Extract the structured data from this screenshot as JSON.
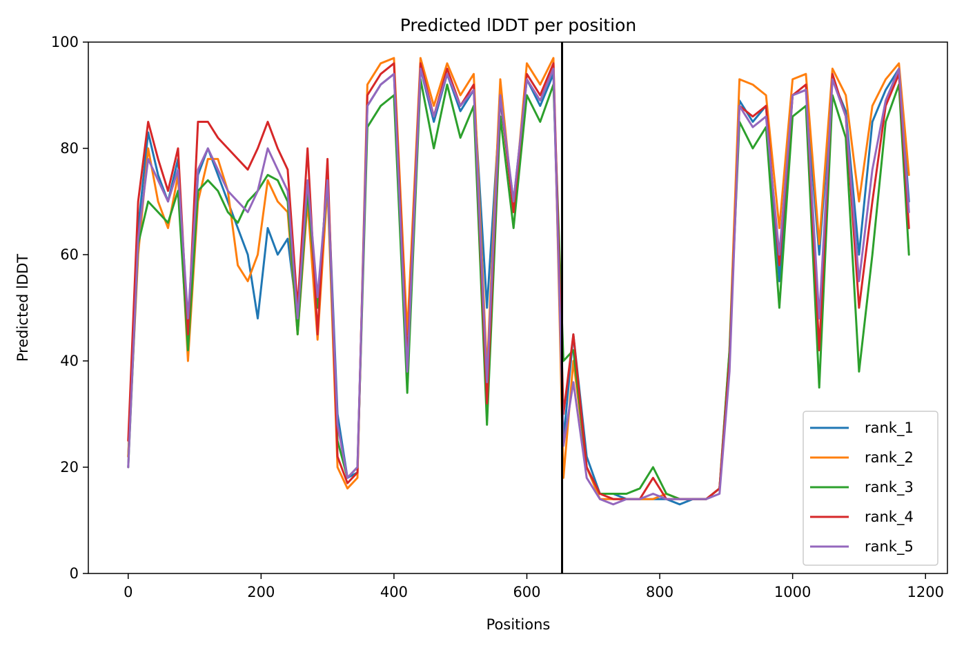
{
  "chart_data": {
    "type": "line",
    "title": "Predicted lDDT per position",
    "xlabel": "Positions",
    "ylabel": "Predicted lDDT",
    "xlim": [
      -60,
      1233
    ],
    "ylim": [
      0,
      100
    ],
    "xticks": [
      0,
      200,
      400,
      600,
      800,
      1000,
      1200
    ],
    "yticks": [
      0,
      20,
      40,
      60,
      80,
      100
    ],
    "grid": false,
    "legend_position": "lower-right",
    "vline_x": 653,
    "series": [
      {
        "name": "rank_1",
        "color": "#1f77b4",
        "x": [
          0,
          15,
          30,
          45,
          60,
          75,
          90,
          105,
          120,
          135,
          150,
          165,
          180,
          195,
          210,
          225,
          240,
          255,
          270,
          285,
          300,
          315,
          330,
          345,
          360,
          380,
          400,
          420,
          440,
          460,
          480,
          500,
          520,
          540,
          560,
          580,
          600,
          620,
          640,
          655,
          670,
          690,
          710,
          730,
          750,
          770,
          790,
          810,
          830,
          850,
          870,
          890,
          905,
          920,
          940,
          960,
          980,
          1000,
          1020,
          1040,
          1060,
          1080,
          1100,
          1120,
          1140,
          1160,
          1175
        ],
        "y": [
          22,
          65,
          83,
          75,
          70,
          78,
          45,
          75,
          80,
          75,
          70,
          65,
          60,
          48,
          65,
          60,
          63,
          48,
          72,
          50,
          75,
          30,
          18,
          19,
          88,
          92,
          94,
          40,
          95,
          85,
          94,
          87,
          91,
          50,
          89,
          70,
          93,
          88,
          94,
          25,
          45,
          22,
          15,
          15,
          14,
          14,
          14,
          14,
          13,
          14,
          14,
          16,
          40,
          89,
          85,
          88,
          55,
          90,
          91,
          60,
          93,
          87,
          60,
          85,
          91,
          95,
          70
        ]
      },
      {
        "name": "rank_2",
        "color": "#ff7f0e",
        "x": [
          0,
          15,
          30,
          45,
          60,
          75,
          90,
          105,
          120,
          135,
          150,
          165,
          180,
          195,
          210,
          225,
          240,
          255,
          270,
          285,
          300,
          315,
          330,
          345,
          360,
          380,
          400,
          420,
          440,
          460,
          480,
          500,
          520,
          540,
          560,
          580,
          600,
          620,
          640,
          655,
          670,
          690,
          710,
          730,
          750,
          770,
          790,
          810,
          830,
          850,
          870,
          890,
          905,
          920,
          940,
          960,
          980,
          1000,
          1020,
          1040,
          1060,
          1080,
          1100,
          1120,
          1140,
          1160,
          1175
        ],
        "y": [
          22,
          60,
          80,
          70,
          65,
          75,
          40,
          70,
          78,
          78,
          72,
          58,
          55,
          60,
          74,
          70,
          68,
          45,
          70,
          44,
          73,
          20,
          16,
          18,
          92,
          96,
          97,
          45,
          97,
          88,
          96,
          90,
          94,
          38,
          93,
          68,
          96,
          92,
          97,
          18,
          40,
          20,
          14,
          14,
          14,
          14,
          14,
          15,
          14,
          14,
          14,
          16,
          42,
          93,
          92,
          90,
          65,
          93,
          94,
          62,
          95,
          90,
          70,
          88,
          93,
          96,
          75
        ]
      },
      {
        "name": "rank_3",
        "color": "#2ca02c",
        "x": [
          0,
          15,
          30,
          45,
          60,
          75,
          90,
          105,
          120,
          135,
          150,
          165,
          180,
          195,
          210,
          225,
          240,
          255,
          270,
          285,
          300,
          315,
          330,
          345,
          360,
          380,
          400,
          420,
          440,
          460,
          480,
          500,
          520,
          540,
          560,
          580,
          600,
          620,
          640,
          655,
          670,
          690,
          710,
          730,
          750,
          770,
          790,
          810,
          830,
          850,
          870,
          890,
          905,
          920,
          940,
          960,
          980,
          1000,
          1020,
          1040,
          1060,
          1080,
          1100,
          1120,
          1140,
          1160,
          1175
        ],
        "y": [
          20,
          62,
          70,
          68,
          66,
          72,
          42,
          72,
          74,
          72,
          68,
          66,
          70,
          72,
          75,
          74,
          70,
          45,
          72,
          50,
          74,
          25,
          18,
          20,
          84,
          88,
          90,
          34,
          93,
          80,
          92,
          82,
          88,
          28,
          86,
          65,
          90,
          85,
          92,
          40,
          42,
          20,
          15,
          15,
          15,
          16,
          20,
          15,
          14,
          14,
          14,
          16,
          42,
          85,
          80,
          84,
          50,
          86,
          88,
          35,
          90,
          82,
          38,
          60,
          85,
          92,
          60
        ]
      },
      {
        "name": "rank_4",
        "color": "#d62728",
        "x": [
          0,
          15,
          30,
          45,
          60,
          75,
          90,
          105,
          120,
          135,
          150,
          165,
          180,
          195,
          210,
          225,
          240,
          255,
          270,
          285,
          300,
          315,
          330,
          345,
          360,
          380,
          400,
          420,
          440,
          460,
          480,
          500,
          520,
          540,
          560,
          580,
          600,
          620,
          640,
          655,
          670,
          690,
          710,
          730,
          750,
          770,
          790,
          810,
          830,
          850,
          870,
          890,
          905,
          920,
          940,
          960,
          980,
          1000,
          1020,
          1040,
          1060,
          1080,
          1100,
          1120,
          1140,
          1160,
          1175
        ],
        "y": [
          25,
          70,
          85,
          78,
          72,
          80,
          45,
          85,
          85,
          82,
          80,
          78,
          76,
          80,
          85,
          80,
          76,
          50,
          80,
          45,
          78,
          22,
          17,
          19,
          90,
          94,
          96,
          40,
          96,
          86,
          95,
          88,
          92,
          32,
          90,
          68,
          94,
          90,
          96,
          30,
          45,
          20,
          15,
          14,
          14,
          14,
          18,
          14,
          14,
          14,
          14,
          16,
          40,
          88,
          86,
          88,
          58,
          90,
          92,
          42,
          94,
          86,
          50,
          70,
          88,
          94,
          65
        ]
      },
      {
        "name": "rank_5",
        "color": "#9467bd",
        "x": [
          0,
          15,
          30,
          45,
          60,
          75,
          90,
          105,
          120,
          135,
          150,
          165,
          180,
          195,
          210,
          225,
          240,
          255,
          270,
          285,
          300,
          315,
          330,
          345,
          360,
          380,
          400,
          420,
          440,
          460,
          480,
          500,
          520,
          540,
          560,
          580,
          600,
          620,
          640,
          655,
          670,
          690,
          710,
          730,
          750,
          770,
          790,
          810,
          830,
          850,
          870,
          890,
          905,
          920,
          940,
          960,
          980,
          1000,
          1020,
          1040,
          1060,
          1080,
          1100,
          1120,
          1140,
          1160,
          1175
        ],
        "y": [
          20,
          63,
          78,
          74,
          70,
          76,
          48,
          76,
          80,
          76,
          72,
          70,
          68,
          72,
          80,
          76,
          72,
          48,
          74,
          52,
          74,
          28,
          18,
          20,
          88,
          92,
          94,
          38,
          95,
          86,
          94,
          88,
          91,
          36,
          90,
          70,
          93,
          89,
          95,
          24,
          36,
          18,
          14,
          13,
          14,
          14,
          15,
          14,
          14,
          14,
          14,
          15,
          38,
          88,
          84,
          86,
          60,
          90,
          91,
          48,
          93,
          86,
          55,
          76,
          89,
          95,
          68
        ]
      }
    ]
  }
}
